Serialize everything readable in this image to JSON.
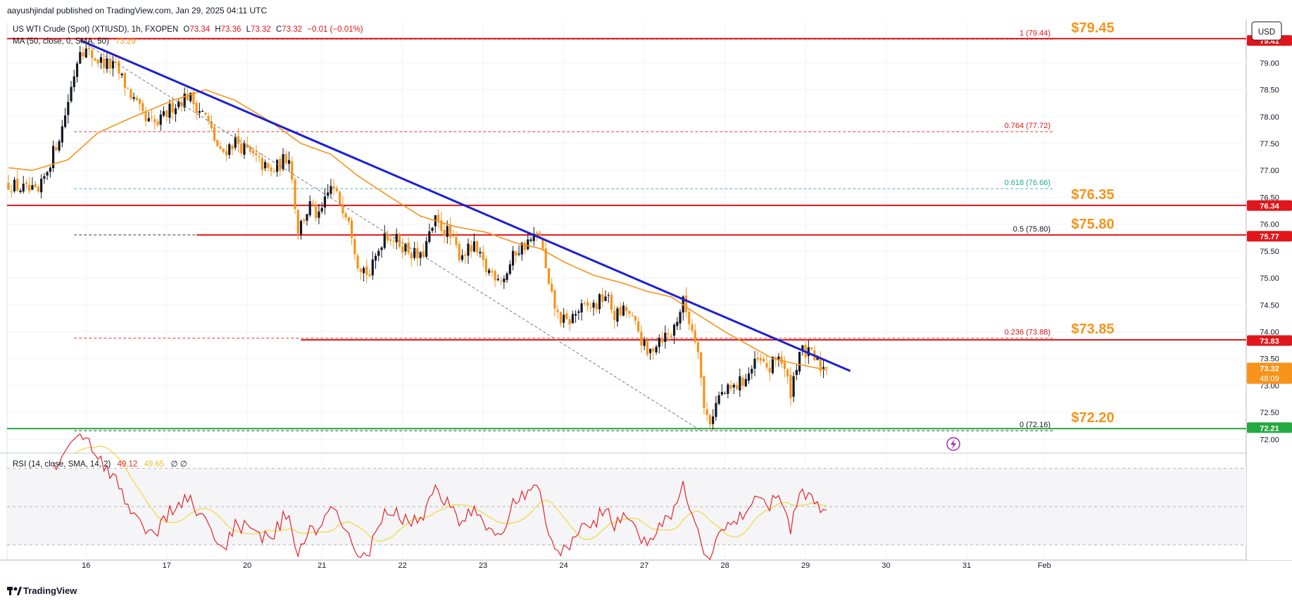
{
  "header": {
    "published": "aayushjindal published on TradingView.com, Jan 29, 2025 04:11 UTC"
  },
  "legend": {
    "symbol": "US WTI Crude (Spot) (XTIUSD), 1h, FXOPEN",
    "o_label": "O",
    "o": "73.34",
    "h_label": "H",
    "h": "73.36",
    "l_label": "L",
    "l": "73.32",
    "c_label": "C",
    "c": "73.32",
    "change": "−0.01 (−0.01%)",
    "ma": "MA (50, close, 0, SMA, 50)",
    "ma_value": "73.29",
    "rsi": "RSI (14, close, SMA, 14, 2)",
    "rsi_value": "49.12",
    "rsi_ma_value": "49.65",
    "rsi_extra": "∅ ∅"
  },
  "currency": "USD",
  "footer": {
    "brand": "TradingView"
  },
  "colors": {
    "up": "#131722",
    "down": "#f7931a",
    "ma": "#f7931a",
    "trend": "#1c1fd6",
    "level": "#e0161b",
    "support": "#26a841",
    "rsi": "#e5232a",
    "rsi_ma": "#f2d84c",
    "fib_green": "#26a69a"
  },
  "chart_data": {
    "type": "candlestick",
    "ylim": [
      71.9,
      79.75
    ],
    "xlim": [
      0,
      338
    ],
    "x_ticks": [
      {
        "i": 26,
        "label": "16"
      },
      {
        "i": 53,
        "label": "17"
      },
      {
        "i": 80,
        "label": "20"
      },
      {
        "i": 105,
        "label": "21"
      },
      {
        "i": 132,
        "label": "22"
      },
      {
        "i": 159,
        "label": "23"
      },
      {
        "i": 186,
        "label": "24"
      },
      {
        "i": 213,
        "label": "27"
      },
      {
        "i": 240,
        "label": "28"
      },
      {
        "i": 267,
        "label": "29"
      },
      {
        "i": 294,
        "label": "30"
      },
      {
        "i": 321,
        "label": "31"
      },
      {
        "i": 347,
        "label": "Feb"
      }
    ],
    "y_ticks": [
      72.0,
      72.5,
      73.0,
      73.5,
      74.0,
      74.5,
      75.0,
      75.5,
      76.0,
      76.5,
      77.0,
      77.5,
      78.0,
      78.5,
      79.0
    ],
    "price_badges": [
      {
        "label": "79.41",
        "value": 79.41,
        "color": "#e0161b"
      },
      {
        "label": "76.34",
        "value": 76.34,
        "color": "#e0161b"
      },
      {
        "label": "75.77",
        "value": 75.77,
        "color": "#e0161b"
      },
      {
        "label": "73.83",
        "value": 73.83,
        "color": "#e0161b"
      },
      {
        "label": "73.32",
        "sub": "48:09",
        "value": 73.32,
        "color": "#f7931a"
      },
      {
        "label": "72.21",
        "value": 72.21,
        "color": "#26a841"
      }
    ],
    "levels": [
      {
        "value": 79.45,
        "label": "$79.45",
        "style": "solid",
        "color": "#e0161b",
        "x0": 0
      },
      {
        "value": 76.35,
        "label": "$76.35",
        "style": "solid",
        "color": "#e0161b",
        "x0": 0
      },
      {
        "value": 75.8,
        "label": "$75.80",
        "style": "solid",
        "color": "#e0161b",
        "x0": 63
      },
      {
        "value": 73.85,
        "label": "$73.85",
        "style": "solid",
        "color": "#e0161b",
        "x0": 98
      },
      {
        "value": 72.2,
        "label": "$72.20",
        "style": "solid",
        "color": "#26a841",
        "x0": 0
      }
    ],
    "fib": [
      {
        "ratio": "1",
        "value": 79.44,
        "label": "1 (79.44)",
        "color": "#e0161b"
      },
      {
        "ratio": "0.764",
        "value": 77.72,
        "label": "0.764 (77.72)",
        "color": "#e0161b"
      },
      {
        "ratio": "0.618",
        "value": 76.66,
        "label": "0.618 (76.66)",
        "color": "#26a69a"
      },
      {
        "ratio": "0.5",
        "value": 75.8,
        "label": "0.5 (75.80)",
        "color": "#131722"
      },
      {
        "ratio": "0.236",
        "value": 73.88,
        "label": "0.236 (73.88)",
        "color": "#e0161b"
      },
      {
        "ratio": "0",
        "value": 72.16,
        "label": "0 (72.16)",
        "color": "#131722"
      }
    ],
    "fib_x_range": [
      22,
      350
    ],
    "trend_line": {
      "x1": 24,
      "y1": 79.42,
      "x2": 282,
      "y2": 73.27
    },
    "diag_line": {
      "x1": 24,
      "y1": 79.42,
      "x2": 232,
      "y2": 72.16
    },
    "anchors": [
      {
        "i": 0,
        "v": 76.75
      },
      {
        "i": 10,
        "v": 76.55
      },
      {
        "i": 18,
        "v": 77.8
      },
      {
        "i": 24,
        "v": 79.3
      },
      {
        "i": 30,
        "v": 79.05
      },
      {
        "i": 36,
        "v": 78.9
      },
      {
        "i": 42,
        "v": 78.3
      },
      {
        "i": 46,
        "v": 77.9
      },
      {
        "i": 50,
        "v": 77.85
      },
      {
        "i": 55,
        "v": 78.2
      },
      {
        "i": 60,
        "v": 78.4
      },
      {
        "i": 66,
        "v": 78.0
      },
      {
        "i": 71,
        "v": 77.3
      },
      {
        "i": 76,
        "v": 77.55
      },
      {
        "i": 80,
        "v": 77.35
      },
      {
        "i": 88,
        "v": 76.95
      },
      {
        "i": 94,
        "v": 77.3
      },
      {
        "i": 97,
        "v": 75.9
      },
      {
        "i": 101,
        "v": 76.35
      },
      {
        "i": 104,
        "v": 76.1
      },
      {
        "i": 108,
        "v": 76.7
      },
      {
        "i": 114,
        "v": 76.15
      },
      {
        "i": 117,
        "v": 75.3
      },
      {
        "i": 121,
        "v": 75.05
      },
      {
        "i": 126,
        "v": 75.85
      },
      {
        "i": 131,
        "v": 75.65
      },
      {
        "i": 138,
        "v": 75.35
      },
      {
        "i": 143,
        "v": 76.05
      },
      {
        "i": 147,
        "v": 75.85
      },
      {
        "i": 151,
        "v": 75.45
      },
      {
        "i": 156,
        "v": 75.55
      },
      {
        "i": 160,
        "v": 75.15
      },
      {
        "i": 166,
        "v": 75.0
      },
      {
        "i": 170,
        "v": 75.5
      },
      {
        "i": 175,
        "v": 75.7
      },
      {
        "i": 178,
        "v": 75.8
      },
      {
        "i": 181,
        "v": 74.8
      },
      {
        "i": 184,
        "v": 74.3
      },
      {
        "i": 187,
        "v": 74.15
      },
      {
        "i": 191,
        "v": 74.4
      },
      {
        "i": 197,
        "v": 74.5
      },
      {
        "i": 200,
        "v": 74.7
      },
      {
        "i": 203,
        "v": 74.3
      },
      {
        "i": 207,
        "v": 74.4
      },
      {
        "i": 211,
        "v": 74.0
      },
      {
        "i": 214,
        "v": 73.55
      },
      {
        "i": 218,
        "v": 73.9
      },
      {
        "i": 222,
        "v": 73.95
      },
      {
        "i": 226,
        "v": 74.55
      },
      {
        "i": 229,
        "v": 74.05
      },
      {
        "i": 231,
        "v": 73.75
      },
      {
        "i": 233,
        "v": 72.55
      },
      {
        "i": 235,
        "v": 72.35
      },
      {
        "i": 238,
        "v": 72.8
      },
      {
        "i": 243,
        "v": 72.95
      },
      {
        "i": 247,
        "v": 73.15
      },
      {
        "i": 251,
        "v": 73.45
      },
      {
        "i": 255,
        "v": 73.3
      },
      {
        "i": 258,
        "v": 73.6
      },
      {
        "i": 262,
        "v": 72.9
      },
      {
        "i": 265,
        "v": 73.65
      },
      {
        "i": 269,
        "v": 73.55
      },
      {
        "i": 272,
        "v": 73.35
      },
      {
        "i": 274,
        "v": 73.32
      }
    ],
    "ma_anchors": [
      {
        "i": 0,
        "v": 77.05
      },
      {
        "i": 8,
        "v": 77.0
      },
      {
        "i": 20,
        "v": 77.2
      },
      {
        "i": 30,
        "v": 77.7
      },
      {
        "i": 42,
        "v": 78.0
      },
      {
        "i": 55,
        "v": 78.3
      },
      {
        "i": 66,
        "v": 78.5
      },
      {
        "i": 76,
        "v": 78.3
      },
      {
        "i": 88,
        "v": 77.9
      },
      {
        "i": 98,
        "v": 77.5
      },
      {
        "i": 108,
        "v": 77.3
      },
      {
        "i": 117,
        "v": 76.9
      },
      {
        "i": 128,
        "v": 76.5
      },
      {
        "i": 138,
        "v": 76.15
      },
      {
        "i": 150,
        "v": 75.95
      },
      {
        "i": 160,
        "v": 75.85
      },
      {
        "i": 170,
        "v": 75.65
      },
      {
        "i": 178,
        "v": 75.55
      },
      {
        "i": 186,
        "v": 75.3
      },
      {
        "i": 196,
        "v": 75.05
      },
      {
        "i": 206,
        "v": 74.9
      },
      {
        "i": 214,
        "v": 74.75
      },
      {
        "i": 222,
        "v": 74.65
      },
      {
        "i": 230,
        "v": 74.35
      },
      {
        "i": 240,
        "v": 74.0
      },
      {
        "i": 248,
        "v": 73.75
      },
      {
        "i": 256,
        "v": 73.5
      },
      {
        "i": 264,
        "v": 73.4
      },
      {
        "i": 274,
        "v": 73.29
      }
    ],
    "rsi": {
      "ylim": [
        25,
        75
      ],
      "y_ticks": [
        40.0,
        60.0
      ],
      "bands": [
        70,
        30
      ],
      "mid": 50
    }
  }
}
